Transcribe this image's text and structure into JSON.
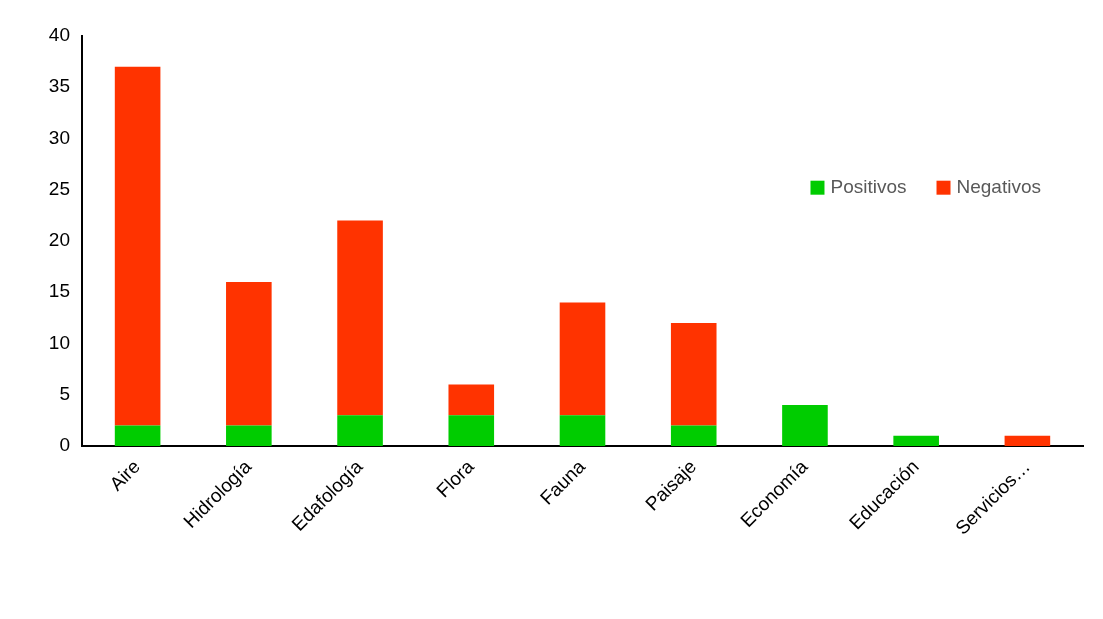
{
  "chart_data": {
    "type": "bar",
    "stacked": true,
    "categories": [
      "Aire",
      "Hidrología",
      "Edafología",
      "Flora",
      "Fauna",
      "Paisaje",
      "Economía",
      "Educación",
      "Servicios…"
    ],
    "series": [
      {
        "name": "Positivos",
        "color": "#00cc00",
        "values": [
          2,
          2,
          3,
          3,
          3,
          2,
          4,
          1,
          0
        ]
      },
      {
        "name": "Negativos",
        "color": "#ff3300",
        "values": [
          35,
          14,
          19,
          3,
          11,
          10,
          0,
          0,
          1
        ]
      }
    ],
    "ylim": [
      0,
      40
    ],
    "yticks": [
      0,
      5,
      10,
      15,
      20,
      25,
      30,
      35,
      40
    ],
    "grid": false,
    "legend": "right"
  }
}
